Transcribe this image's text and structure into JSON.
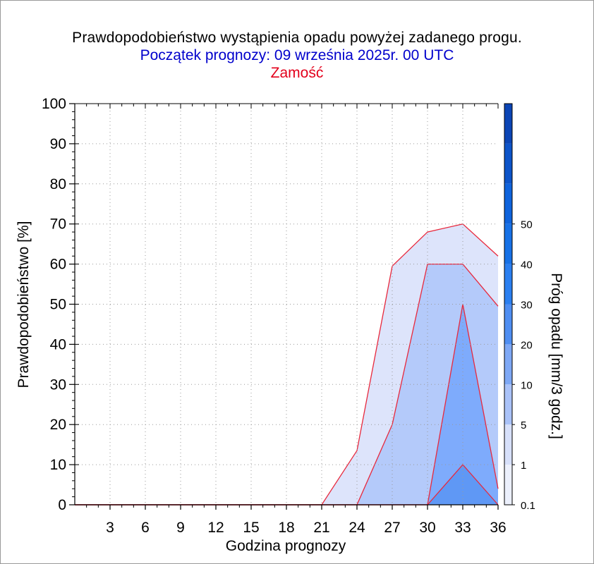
{
  "titles": {
    "main": "Prawdopodobieństwo wystąpienia opadu powyżej zadanego progu.",
    "forecast_start": "Początek prognozy: 09 września 2025r. 00 UTC",
    "location": "Zamość"
  },
  "colors": {
    "title": "#000000",
    "subtitle": "#0000cc",
    "location": "#e3001b",
    "outline": "#e8283c"
  },
  "chart_data": {
    "type": "area",
    "xlabel": "Godzina prognozy",
    "ylabel": "Prawdopodobieństwo [%]",
    "x": [
      0,
      3,
      6,
      9,
      12,
      15,
      18,
      21,
      24,
      27,
      30,
      33,
      36
    ],
    "x_ticks": [
      "3",
      "6",
      "9",
      "12",
      "15",
      "18",
      "21",
      "24",
      "27",
      "30",
      "33",
      "36"
    ],
    "xlim": [
      0,
      36
    ],
    "ylim": [
      0,
      100
    ],
    "y_ticks": [
      0,
      10,
      20,
      30,
      40,
      50,
      60,
      70,
      80,
      90,
      100
    ],
    "grid": true,
    "series": [
      {
        "name": "0.1",
        "color": "#dde4fb",
        "values": [
          0,
          0,
          0,
          0,
          0,
          0,
          0,
          0,
          13.5,
          59.5,
          68,
          70,
          62
        ]
      },
      {
        "name": "1",
        "color": "#b4cafa",
        "values": [
          0,
          0,
          0,
          0,
          0,
          0,
          0,
          0,
          0,
          20,
          60,
          60,
          49.5
        ]
      },
      {
        "name": "5",
        "color": "#7eabfc",
        "values": [
          0,
          0,
          0,
          0,
          0,
          0,
          0,
          0,
          0,
          0,
          0,
          50,
          4
        ]
      },
      {
        "name": "10",
        "color": "#5f98f5",
        "values": [
          0,
          0,
          0,
          0,
          0,
          0,
          0,
          0,
          0,
          0,
          0,
          10,
          0
        ]
      }
    ],
    "colorbar": {
      "label": "Próg opadu [mm/3 godz.]",
      "tick_labels": [
        "0.1",
        "1",
        "5",
        "10",
        "20",
        "30",
        "40",
        "50"
      ],
      "colors": [
        "#ecf0fc",
        "#d7e0fa",
        "#aac2f8",
        "#7ea8f5",
        "#4f8ef2",
        "#2b7ff0",
        "#1771e6",
        "#0f63dc",
        "#0d54c9",
        "#0b45b5"
      ]
    }
  }
}
